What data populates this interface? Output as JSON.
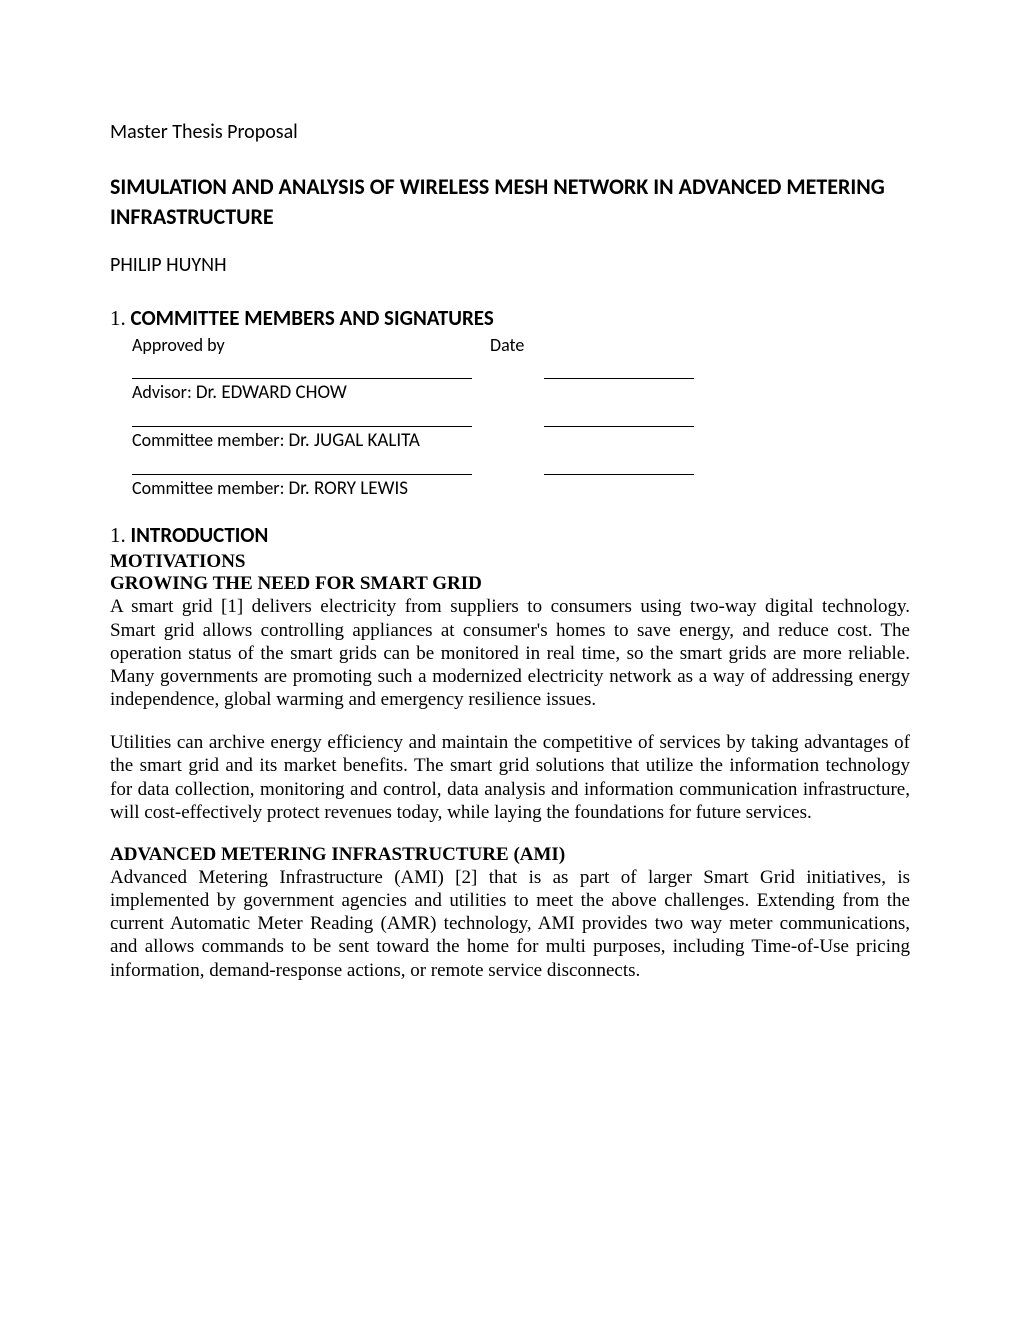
{
  "header": {
    "doc_type": "Master Thesis Proposal",
    "title": "SIMULATION AND ANALYSIS OF WIRELESS MESH NETWORK IN ADVANCED METERING INFRASTRUCTURE",
    "author": "PHILIP HUYNH"
  },
  "committee": {
    "num": "1.",
    "heading": "COMMITTEE MEMBERS AND SIGNATURES",
    "approved_by_label": "Approved by",
    "date_label": "Date",
    "members": [
      {
        "role": "Advisor:",
        "name": "Dr. EDWARD CHOW"
      },
      {
        "role": "Committee member:",
        "name": "Dr. JUGAL KALITA"
      },
      {
        "role": "Committee member:",
        "name": "Dr. RORY LEWIS"
      }
    ]
  },
  "intro": {
    "num": "1.",
    "heading": "INTRODUCTION",
    "sub1": "MOTIVATIONS",
    "sub2": "GROWING THE NEED FOR SMART GRID",
    "para1": "A smart grid [1] delivers electricity from suppliers to consumers using two-way digital technology. Smart grid allows controlling appliances at consumer's homes to save energy, and reduce cost. The operation status of the smart grids can be monitored in real time, so the smart grids are more reliable. Many governments are promoting such a modernized electricity network as a way of addressing energy independence, global warming and emergency resilience issues.",
    "para2": "Utilities can archive energy efficiency and maintain the competitive of services by taking advantages of the smart grid and its market benefits. The smart grid solutions that utilize the information technology for data collection, monitoring and control, data analysis and information communication infrastructure, will cost-effectively protect revenues today, while laying the foundations for future services."
  },
  "ami": {
    "heading": "ADVANCED METERING INFRASTRUCTURE (AMI)",
    "para": "Advanced Metering Infrastructure (AMI) [2] that is as part of larger Smart Grid initiatives, is implemented by government agencies and utilities to meet the above challenges. Extending from the current Automatic Meter Reading (AMR) technology, AMI provides two way meter communications, and allows commands to be sent toward the home for multi purposes, including Time-of-Use pricing information, demand-response actions, or remote service disconnects."
  }
}
